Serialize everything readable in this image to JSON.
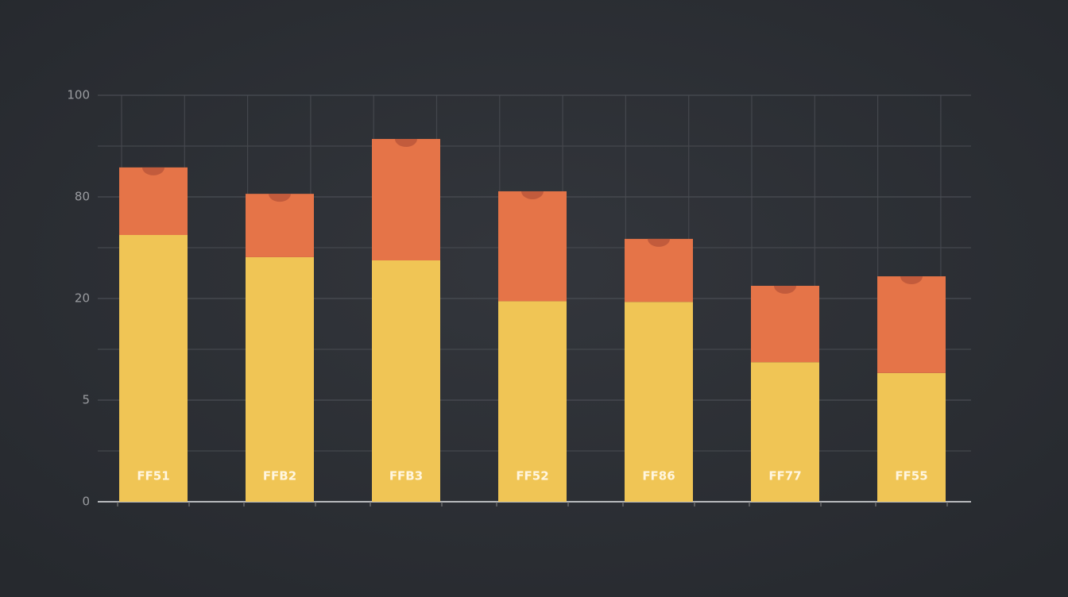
{
  "chart_data": {
    "type": "stacked-bar",
    "categories": [
      "FF51",
      "FFB2",
      "FFB3",
      "FF52",
      "FF86",
      "FF77",
      "FF55"
    ],
    "series": [
      {
        "color": "#f0c555",
        "values": [
          57.5,
          44.4,
          42.5,
          19.6,
          19.5,
          10.6,
          9.0
        ]
      },
      {
        "color": "#e57448",
        "values": [
          28.3,
          36.2,
          48.9,
          61.5,
          35.7,
          16.9,
          24.1
        ]
      }
    ],
    "ylim": [
      0,
      100
    ],
    "yticks": [
      0,
      5,
      20,
      80,
      100
    ],
    "grid": true
  }
}
